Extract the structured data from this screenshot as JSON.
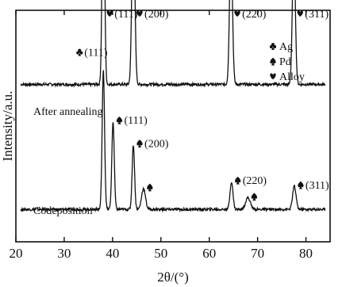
{
  "chart_data": {
    "type": "line",
    "title": "",
    "xlabel": "2θ/(°)",
    "ylabel": "Intensity/a.u.",
    "xlim": [
      20,
      85
    ],
    "xticks": [
      20,
      30,
      40,
      50,
      60,
      70,
      80
    ],
    "x_tick_labels": [
      "20",
      "30",
      "40",
      "50",
      "60",
      "70",
      "80"
    ],
    "y_ticks_shown": false,
    "legend": {
      "placement": "top-right",
      "entries": [
        {
          "marker": "club",
          "label": "Ag"
        },
        {
          "marker": "spade",
          "label": "Pd"
        },
        {
          "marker": "heart",
          "label": "Alloy"
        }
      ]
    },
    "series": [
      {
        "name": "After annealing",
        "baseline": 0.68,
        "noise": 0.006,
        "peaks": [
          {
            "x": 38.1,
            "height": 1.0,
            "width": 0.25
          },
          {
            "x": 44.3,
            "height": 0.77,
            "width": 0.3
          },
          {
            "x": 64.5,
            "height": 0.61,
            "width": 0.3
          },
          {
            "x": 77.5,
            "height": 0.6,
            "width": 0.3
          }
        ],
        "peak_labels": [
          {
            "x": 38.1,
            "text": "(111)",
            "marker": "heart"
          },
          {
            "x": 44.3,
            "text": "(200)",
            "marker": "heart"
          },
          {
            "x": 64.5,
            "text": "(220)",
            "marker": "heart"
          },
          {
            "x": 77.5,
            "text": "(311)",
            "marker": "heart"
          }
        ]
      },
      {
        "name": "Codeposition",
        "baseline": 0.14,
        "noise": 0.006,
        "peaks": [
          {
            "x": 38.1,
            "height": 0.6,
            "width": 0.25
          },
          {
            "x": 40.1,
            "height": 0.38,
            "width": 0.25
          },
          {
            "x": 44.3,
            "height": 0.28,
            "width": 0.25
          },
          {
            "x": 46.4,
            "height": 0.09,
            "width": 0.4
          },
          {
            "x": 64.6,
            "height": 0.12,
            "width": 0.3
          },
          {
            "x": 68.0,
            "height": 0.05,
            "width": 0.5
          },
          {
            "x": 77.6,
            "height": 0.1,
            "width": 0.35
          }
        ],
        "peak_labels": [
          {
            "x": 38.1,
            "text": "(111)",
            "marker": "club"
          },
          {
            "x": 40.1,
            "text": "(111)",
            "marker": "spade"
          },
          {
            "x": 44.3,
            "text": "(200)",
            "marker": "spade"
          },
          {
            "x": 46.4,
            "text": "",
            "marker": "spade"
          },
          {
            "x": 64.6,
            "text": "(220)",
            "marker": "spade"
          },
          {
            "x": 68.0,
            "text": "",
            "marker": "spade"
          },
          {
            "x": 77.6,
            "text": "(311)",
            "marker": "spade"
          }
        ]
      }
    ]
  }
}
